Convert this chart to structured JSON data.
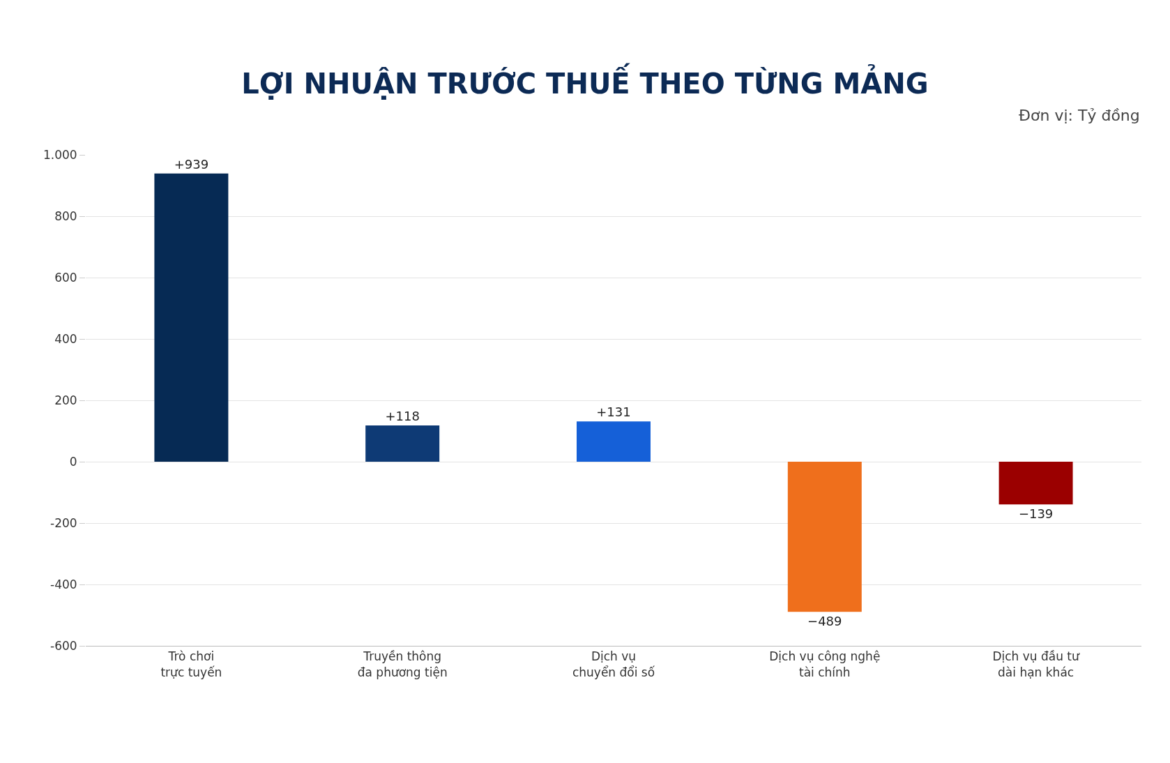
{
  "chart_data": {
    "type": "bar",
    "title": "LỢI NHUẬN TRƯỚC THUẾ THEO TỪNG MẢNG",
    "annotations": [
      "Đơn vị: Tỷ đồng"
    ],
    "categories": [
      "Trò chơi\ntrực tuyến",
      "Truyền thông\nđa phương tiện",
      "Dịch vụ\nchuyển đổi số",
      "Dịch vụ công nghệ\ntài chính",
      "Dịch vụ đầu tư\ndài hạn khác"
    ],
    "values": [
      939,
      118,
      131,
      -489,
      -139
    ],
    "value_labels": [
      "+939",
      "+118",
      "+131",
      "−489",
      "−139"
    ],
    "colors": [
      "#062a54",
      "#0e3a75",
      "#1560d8",
      "#ef6f1c",
      "#9b0000"
    ],
    "ylim": [
      -600,
      1000
    ],
    "yticks": [
      -600,
      -400,
      -200,
      0,
      200,
      400,
      600,
      800,
      {
        "value": 1000,
        "label": "1.000"
      }
    ],
    "grid": "y"
  }
}
